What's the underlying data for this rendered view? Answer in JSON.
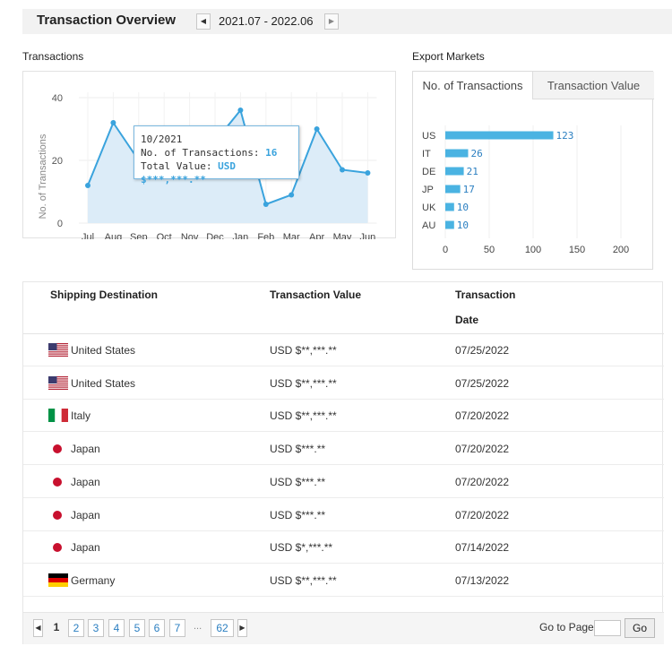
{
  "header": {
    "title": "Transaction Overview",
    "date_range": "2021.07 - 2022.06",
    "prev_icon": "triangle-left-icon",
    "next_icon": "triangle-right-icon"
  },
  "transactions_section": {
    "label": "Transactions"
  },
  "export_section": {
    "label": "Export Markets"
  },
  "tooltip": {
    "date": "10/2021",
    "count_label": "No. of Transactions:",
    "count_value": "16",
    "value_label": "Total Value:",
    "value_value": "USD $***,***.**"
  },
  "markets_tabs": [
    {
      "label": "No. of Transactions",
      "active": true
    },
    {
      "label": "Transaction Value",
      "active": false
    }
  ],
  "chart_data": [
    {
      "type": "area",
      "title": "",
      "xlabel": "",
      "ylabel": "No. of Transactions",
      "categories": [
        "Jul",
        "Aug",
        "Sep",
        "Oct",
        "Nov",
        "Dec",
        "Jan",
        "Feb",
        "Mar",
        "Apr",
        "May",
        "Jun"
      ],
      "values": [
        12,
        32,
        20,
        16,
        27,
        26,
        36,
        6,
        9,
        30,
        17,
        16
      ],
      "ylim": [
        0,
        40
      ],
      "yticks": [
        0,
        20,
        40
      ],
      "grid": true,
      "color": "#3aa3dd",
      "fill": "#dcecf8"
    },
    {
      "type": "bar",
      "orientation": "horizontal",
      "categories": [
        "US",
        "IT",
        "DE",
        "JP",
        "UK",
        "AU"
      ],
      "values": [
        123,
        26,
        21,
        17,
        10,
        10
      ],
      "xlim": [
        0,
        200
      ],
      "xticks": [
        0,
        50,
        100,
        150,
        200
      ],
      "grid": true,
      "color": "#4ab3e2",
      "label_color": "#2b7fc1"
    }
  ],
  "table": {
    "headers": {
      "destination": "Shipping Destination",
      "value": "Transaction Value",
      "date_line1": "Transaction",
      "date_line2": "Date"
    },
    "rows": [
      {
        "flag": "us-flag-icon",
        "destination": "United States",
        "value": "USD $**,***.**",
        "date": "07/25/2022"
      },
      {
        "flag": "us-flag-icon",
        "destination": "United States",
        "value": "USD $**,***.**",
        "date": "07/25/2022"
      },
      {
        "flag": "italy-flag-icon",
        "destination": "Italy",
        "value": "USD $**,***.**",
        "date": "07/20/2022"
      },
      {
        "flag": "japan-flag-icon",
        "destination": "Japan",
        "value": "USD $***.**",
        "date": "07/20/2022"
      },
      {
        "flag": "japan-flag-icon",
        "destination": "Japan",
        "value": "USD $***.**",
        "date": "07/20/2022"
      },
      {
        "flag": "japan-flag-icon",
        "destination": "Japan",
        "value": "USD $***.**",
        "date": "07/20/2022"
      },
      {
        "flag": "japan-flag-icon",
        "destination": "Japan",
        "value": "USD $*,***.**",
        "date": "07/14/2022"
      },
      {
        "flag": "germany-flag-icon",
        "destination": "Germany",
        "value": "USD $**,***.**",
        "date": "07/13/2022"
      }
    ]
  },
  "pagination": {
    "current": "1",
    "pages": [
      "2",
      "3",
      "4",
      "5",
      "6",
      "7"
    ],
    "ellipsis": "...",
    "last": "62",
    "goto_label": "Go to Page",
    "goto_value": "",
    "go_button": "Go"
  }
}
